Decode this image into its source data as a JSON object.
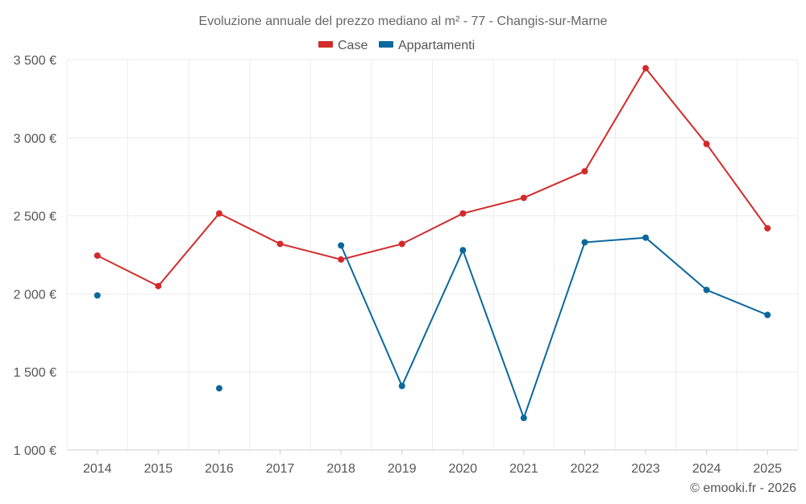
{
  "colors": {
    "case": "#d32a2a",
    "appartamenti": "#0a689c"
  },
  "footer": {
    "credit": "© emooki.fr - 2026"
  },
  "chart_data": {
    "type": "line",
    "title": "Evoluzione annuale del prezzo mediano al m² - 77 - Changis-sur-Marne",
    "categories": [
      "2014",
      "2015",
      "2016",
      "2017",
      "2018",
      "2019",
      "2020",
      "2021",
      "2022",
      "2023",
      "2024",
      "2025"
    ],
    "series": [
      {
        "name": "Case",
        "values": [
          2245,
          2050,
          2515,
          2320,
          2220,
          2320,
          2515,
          2615,
          2785,
          3445,
          2960,
          2420
        ]
      },
      {
        "name": "Appartamenti",
        "values": [
          1990,
          null,
          1395,
          null,
          2310,
          1410,
          2280,
          1205,
          2330,
          2360,
          2025,
          1865
        ]
      }
    ],
    "ylim": [
      1000,
      3500
    ],
    "yticks": [
      1000,
      1500,
      2000,
      2500,
      3000,
      3500
    ],
    "ytick_labels": [
      "1 000 €",
      "1 500 €",
      "2 000 €",
      "2 500 €",
      "3 000 €",
      "3 500 €"
    ],
    "legend_position": "top-center",
    "grid": true
  }
}
